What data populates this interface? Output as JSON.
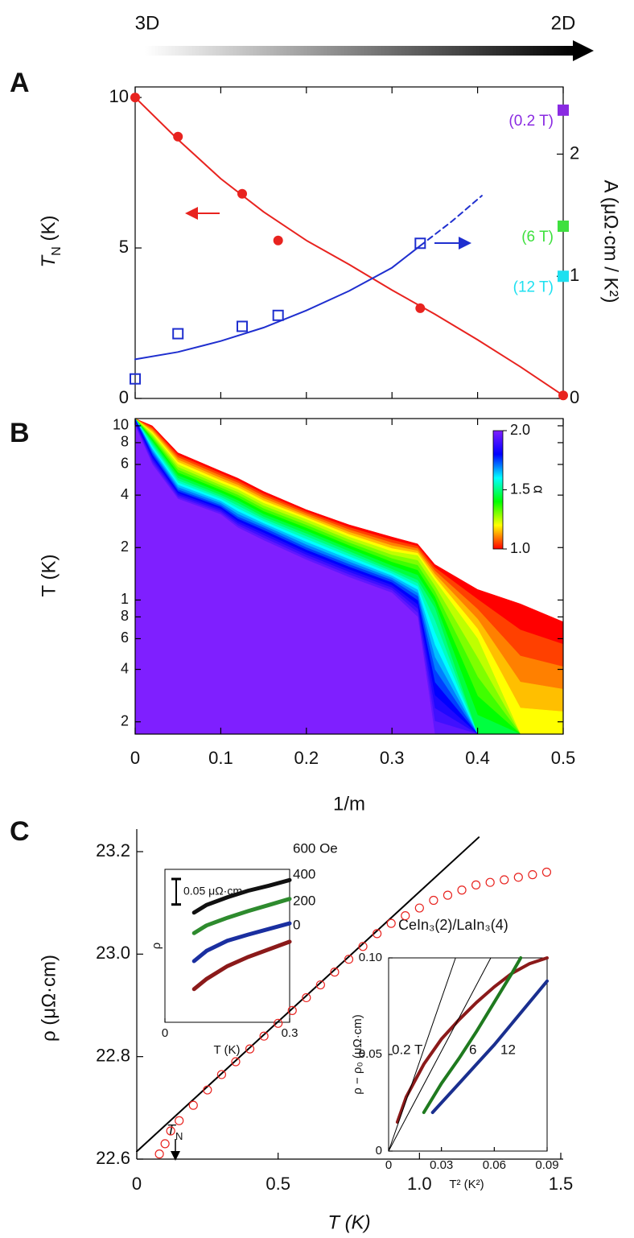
{
  "header": {
    "left": "3D",
    "right": "2D"
  },
  "chart_data": [
    {
      "type": "scatter",
      "panel": "A",
      "xlim": [
        0,
        0.5
      ],
      "ylim": [
        0,
        10.35
      ],
      "yticks": [
        0,
        5,
        10
      ],
      "y2lim": [
        0,
        2.55
      ],
      "y2ticks": [
        0,
        1,
        2
      ],
      "ylabel": "T",
      "ylabel_sub": "N",
      "ylabel_unit": " (K)",
      "y2label": "A (μΩ·cm / K²)",
      "series": [
        {
          "color": "#e8231f",
          "style": "line",
          "x": [
            0,
            0.05,
            0.1,
            0.15,
            0.2,
            0.25,
            0.3,
            0.35,
            0.4,
            0.45,
            0.5
          ],
          "values": [
            10,
            8.6,
            7.3,
            6.2,
            5.25,
            4.45,
            3.6,
            2.8,
            1.95,
            1.05,
            0.1
          ]
        },
        {
          "color": "#e8231f",
          "marker": "circle",
          "x": [
            0,
            0.05,
            0.125,
            0.167,
            0.333,
            0.5
          ],
          "values": [
            10,
            8.7,
            6.8,
            5.25,
            3.0,
            0.1
          ]
        },
        {
          "color": "#1f2fcf",
          "style": "line",
          "axis": "y2",
          "x": [
            0,
            0.05,
            0.1,
            0.15,
            0.2,
            0.25,
            0.3,
            0.333
          ],
          "values": [
            0.32,
            0.38,
            0.47,
            0.58,
            0.72,
            0.88,
            1.07,
            1.25
          ]
        },
        {
          "color": "#1f2fcf",
          "style": "line",
          "dash": true,
          "axis": "y2",
          "x": [
            0.333,
            0.37,
            0.405
          ],
          "values": [
            1.25,
            1.45,
            1.66
          ]
        },
        {
          "color": "#1f2fcf",
          "marker": "open-square",
          "axis": "y2",
          "x": [
            0,
            0.05,
            0.125,
            0.167,
            0.333
          ],
          "values": [
            0.16,
            0.53,
            0.59,
            0.68,
            1.27
          ]
        },
        {
          "color": "#8a2be2",
          "marker": "square",
          "axis": "y2",
          "label": "(0.2 T)",
          "x": [
            0.5
          ],
          "values": [
            2.36
          ]
        },
        {
          "color": "#3ee03e",
          "marker": "square",
          "axis": "y2",
          "label": "(6 T)",
          "x": [
            0.5
          ],
          "values": [
            1.41
          ]
        },
        {
          "color": "#1ee0f0",
          "marker": "square",
          "axis": "y2",
          "label": "(12 T)",
          "x": [
            0.5
          ],
          "values": [
            1.0
          ]
        }
      ]
    },
    {
      "type": "heatmap",
      "panel": "B",
      "xlim": [
        0,
        0.5
      ],
      "xticks": [
        0,
        0.1,
        0.2,
        0.3,
        0.4,
        0.5
      ],
      "xlabel": "1/m",
      "ylabel": "T (K)",
      "log_y": true,
      "ylim": [
        0.17,
        11
      ],
      "yticks": [
        {
          "value": 0.2,
          "label": "2"
        },
        {
          "value": 0.4,
          "label": "4"
        },
        {
          "value": 0.6,
          "label": "6"
        },
        {
          "value": 0.8,
          "label": "8"
        },
        1,
        2,
        4,
        6,
        8,
        10
      ],
      "x": [
        0,
        0.02,
        0.05,
        0.1,
        0.12,
        0.15,
        0.2,
        0.25,
        0.3,
        0.33,
        0.35,
        0.4,
        0.45,
        0.5
      ],
      "levels": [
        {
          "alpha": 1.0,
          "values": [
            11,
            10,
            7,
            5.5,
            5,
            4.2,
            3.3,
            2.7,
            2.3,
            2.1,
            1.6,
            1.15,
            0.95,
            0.75
          ]
        },
        {
          "alpha": 1.25,
          "values": [
            11,
            9,
            6,
            4.7,
            4.3,
            3.6,
            2.9,
            2.3,
            1.9,
            1.8,
            1.3,
            0.6,
            0.17,
            0.17
          ]
        },
        {
          "alpha": 1.5,
          "values": [
            11,
            8,
            5,
            4,
            3.6,
            3,
            2.4,
            1.9,
            1.5,
            1.3,
            0.9,
            0.17,
            0.17,
            0.17
          ]
        },
        {
          "alpha": 1.75,
          "values": [
            11,
            7,
            4.3,
            3.5,
            3,
            2.6,
            2,
            1.6,
            1.3,
            1.05,
            0.4,
            0.17,
            0.17,
            0.17
          ]
        },
        {
          "alpha": 2.0,
          "values": [
            10,
            6,
            3.8,
            3.1,
            2.6,
            2.2,
            1.7,
            1.35,
            1.1,
            0.8,
            0.17,
            0.17,
            0.17,
            0.17
          ]
        }
      ],
      "clim": [
        1,
        2
      ],
      "colormap": [
        "#ff0000",
        "#ffff00",
        "#00ff00",
        "#00ffff",
        "#0000ff",
        "#7f1fff"
      ],
      "colorticks": [
        {
          "value": 1,
          "label": "1.0"
        },
        1.5,
        {
          "value": 2,
          "label": "2.0"
        }
      ],
      "colorlabel": "α"
    },
    {
      "type": "scatter",
      "panel": "C",
      "xlim": [
        0,
        1.5
      ],
      "xticks": [
        0,
        0.5,
        {
          "value": 1,
          "label": "1.0"
        },
        1.5
      ],
      "ylim": [
        22.6,
        23.244
      ],
      "yticks": [
        22.6,
        22.8,
        {
          "value": 23,
          "label": "23.0"
        },
        23.2
      ],
      "xlabel": "T (K)",
      "ylabel": "ρ (μΩ·cm)",
      "annotation": "CeIn₃(2)/LaIn₃(4)",
      "tn_label": "T",
      "tn_sub": "N",
      "series": [
        {
          "color": "#000000",
          "style": "line",
          "x": [
            0,
            1.21
          ],
          "values": [
            22.615,
            23.228
          ]
        },
        {
          "color": "#e8231f",
          "marker": "open-circle",
          "x": [
            0.08,
            0.1,
            0.12,
            0.15,
            0.2,
            0.25,
            0.3,
            0.35,
            0.4,
            0.45,
            0.5,
            0.55,
            0.6,
            0.65,
            0.7,
            0.75,
            0.8,
            0.85,
            0.9,
            0.95,
            1.0,
            1.05,
            1.1,
            1.15,
            1.2,
            1.25,
            1.3,
            1.35,
            1.4,
            1.45
          ],
          "values": [
            22.61,
            22.63,
            22.655,
            22.675,
            22.705,
            22.735,
            22.765,
            22.79,
            22.815,
            22.84,
            22.865,
            22.89,
            22.915,
            22.94,
            22.965,
            22.99,
            23.015,
            23.04,
            23.06,
            23.075,
            23.09,
            23.105,
            23.115,
            23.125,
            23.135,
            23.14,
            23.145,
            23.15,
            23.155,
            23.16
          ]
        }
      ]
    },
    {
      "type": "line",
      "xlim": [
        0,
        0.3
      ],
      "xticks": [
        0,
        0.3
      ],
      "ylim": [
        0,
        0.3
      ],
      "xlabel": "T (K)",
      "ylabel": "ρ",
      "scalebar": {
        "value": 0.05,
        "label": "0.05 μΩ·cm"
      },
      "series": [
        {
          "name": "600 Oe",
          "color": "#111111",
          "x": [
            0.07,
            0.1,
            0.15,
            0.2,
            0.25,
            0.3
          ],
          "values": [
            0.215,
            0.23,
            0.245,
            0.258,
            0.268,
            0.279
          ]
        },
        {
          "name": "400",
          "color": "#2e8b2e",
          "x": [
            0.07,
            0.1,
            0.15,
            0.2,
            0.25,
            0.3
          ],
          "values": [
            0.175,
            0.19,
            0.205,
            0.218,
            0.23,
            0.242
          ]
        },
        {
          "name": "200",
          "color": "#1a2fa0",
          "x": [
            0.07,
            0.1,
            0.15,
            0.2,
            0.25,
            0.3
          ],
          "values": [
            0.12,
            0.14,
            0.16,
            0.172,
            0.183,
            0.194
          ]
        },
        {
          "name": "0",
          "color": "#8b1a1a",
          "x": [
            0.07,
            0.1,
            0.15,
            0.2,
            0.25,
            0.3
          ],
          "values": [
            0.065,
            0.085,
            0.11,
            0.128,
            0.143,
            0.158
          ]
        }
      ]
    },
    {
      "type": "line",
      "xlim": [
        0,
        0.09
      ],
      "xticks": [
        0,
        0.03,
        0.06,
        0.09
      ],
      "ylim": [
        0,
        0.1
      ],
      "yticks": [
        0,
        0.05,
        {
          "value": 0.1,
          "label": "0.10"
        }
      ],
      "xlabel": "T² (K²)",
      "ylabel": "ρ − ρ₀ (μΩ·cm)",
      "series": [
        {
          "name": "0.2 T",
          "color": "#8b1a1a",
          "x": [
            0.005,
            0.01,
            0.02,
            0.03,
            0.04,
            0.05,
            0.06,
            0.07,
            0.08,
            0.09
          ],
          "values": [
            0.015,
            0.028,
            0.045,
            0.058,
            0.068,
            0.077,
            0.085,
            0.092,
            0.097,
            0.1
          ]
        },
        {
          "name": "6",
          "color": "#1f7a1f",
          "x": [
            0.02,
            0.03,
            0.04,
            0.05,
            0.06,
            0.07,
            0.075
          ],
          "values": [
            0.02,
            0.035,
            0.048,
            0.062,
            0.077,
            0.092,
            0.1
          ]
        },
        {
          "name": "12",
          "color": "#1a2f8f",
          "x": [
            0.025,
            0.04,
            0.05,
            0.06,
            0.07,
            0.08,
            0.09
          ],
          "values": [
            0.02,
            0.035,
            0.045,
            0.055,
            0.066,
            0.077,
            0.088
          ]
        },
        {
          "color": "#000000",
          "thin": true,
          "x": [
            0,
            0.038
          ],
          "values": [
            0,
            0.1
          ]
        },
        {
          "color": "#000000",
          "thin": true,
          "x": [
            0,
            0.058
          ],
          "values": [
            0,
            0.1
          ]
        }
      ]
    }
  ]
}
